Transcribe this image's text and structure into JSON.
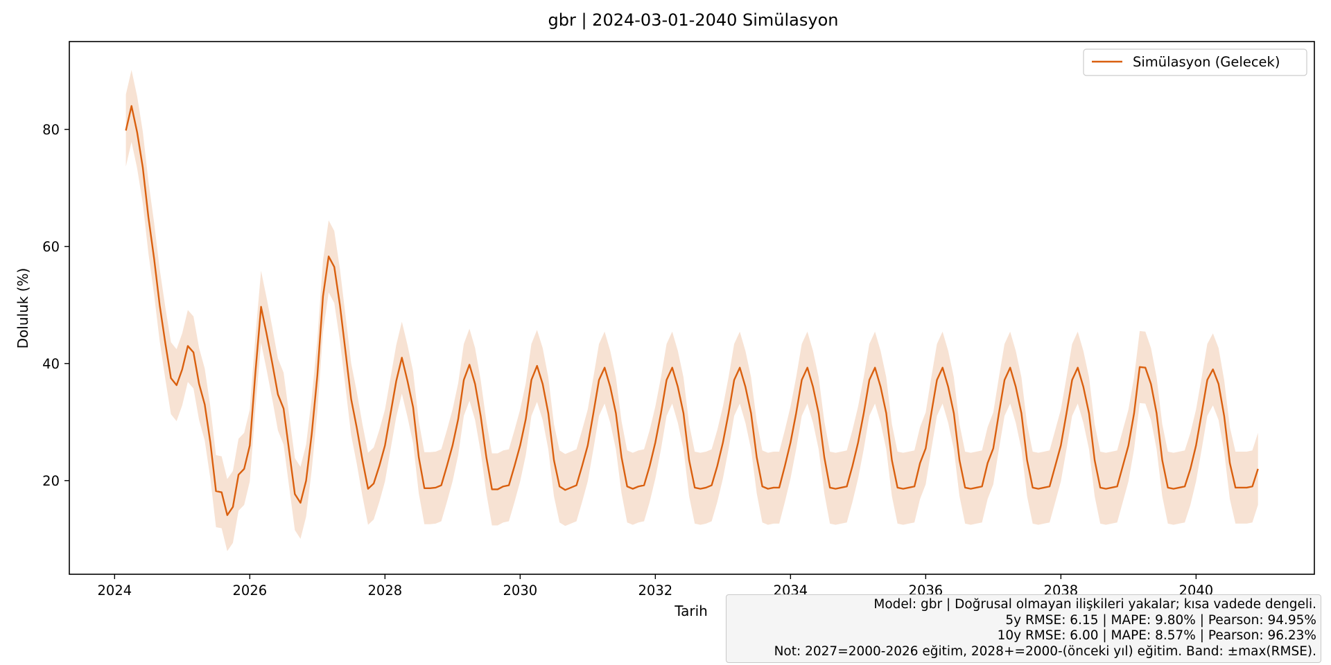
{
  "colors": {
    "line": "#d95f0e",
    "band": "#f7e2d3",
    "axis": "#000000",
    "box_bg": "#f5f5f5"
  },
  "chart_data": {
    "type": "line",
    "title": "gbr | 2024-03-01-2040 Simülasyon",
    "xlabel": "Tarih",
    "ylabel": "Doluluk (%)",
    "xlim": [
      2023.33,
      2041.75
    ],
    "ylim": [
      4,
      95
    ],
    "x_ticks": [
      2024,
      2026,
      2028,
      2030,
      2032,
      2034,
      2036,
      2038,
      2040
    ],
    "x_tick_labels": [
      "2024",
      "2026",
      "2028",
      "2030",
      "2032",
      "2034",
      "2036",
      "2038",
      "2040"
    ],
    "y_ticks": [
      20,
      40,
      60,
      80
    ],
    "y_tick_labels": [
      "20",
      "40",
      "60",
      "80"
    ],
    "grid": false,
    "legend": {
      "position": "top-right",
      "entries": [
        "Simülasyon (Gelecek)"
      ]
    },
    "band_halfwidth": 6.15,
    "series": [
      {
        "name": "Simülasyon (Gelecek)",
        "x_start": 2024.1667,
        "x_step": 0.08333,
        "values": [
          79.8,
          84.0,
          79.5,
          73.5,
          65.0,
          58.0,
          50.0,
          43.5,
          37.5,
          36.3,
          39.0,
          43.0,
          41.9,
          36.5,
          33.0,
          26.5,
          18.2,
          18.0,
          14.1,
          15.5,
          21.0,
          22.0,
          26.0,
          38.5,
          49.7,
          45.0,
          40.0,
          34.7,
          32.3,
          25.0,
          17.7,
          16.2,
          20.0,
          28.0,
          38.0,
          51.5,
          58.3,
          56.5,
          50.0,
          42.0,
          33.9,
          29.0,
          23.5,
          18.6,
          19.5,
          22.5,
          26.0,
          31.5,
          37.0,
          41.0,
          37.0,
          32.5,
          24.0,
          18.7,
          18.7,
          18.8,
          19.2,
          22.5,
          26.0,
          30.5,
          37.2,
          39.8,
          36.5,
          31.0,
          24.0,
          18.5,
          18.5,
          19.0,
          19.2,
          22.5,
          26.0,
          30.5,
          37.2,
          39.6,
          36.5,
          31.5,
          23.5,
          19.0,
          18.4,
          18.8,
          19.2,
          22.5,
          26.0,
          31.5,
          37.2,
          39.3,
          36.0,
          31.5,
          24.0,
          19.0,
          18.6,
          19.0,
          19.2,
          22.5,
          26.5,
          31.5,
          37.2,
          39.3,
          36.0,
          31.5,
          23.5,
          18.8,
          18.6,
          18.8,
          19.2,
          22.5,
          26.5,
          31.5,
          37.2,
          39.3,
          36.0,
          31.5,
          24.0,
          19.0,
          18.6,
          18.8,
          18.8,
          22.5,
          26.5,
          31.5,
          37.2,
          39.3,
          36.0,
          31.5,
          24.0,
          18.8,
          18.6,
          18.8,
          19.0,
          22.5,
          26.5,
          31.5,
          37.2,
          39.3,
          36.0,
          31.5,
          23.5,
          18.8,
          18.6,
          18.8,
          19.0,
          23.0,
          25.5,
          31.5,
          37.2,
          39.3,
          36.0,
          31.5,
          23.5,
          18.8,
          18.6,
          18.8,
          19.0,
          23.0,
          25.5,
          31.5,
          37.2,
          39.3,
          36.0,
          31.5,
          23.5,
          18.8,
          18.6,
          18.8,
          19.0,
          22.5,
          26.0,
          31.5,
          37.2,
          39.3,
          36.0,
          31.5,
          23.5,
          18.8,
          18.6,
          18.8,
          19.0,
          22.5,
          26.0,
          31.5,
          39.4,
          39.3,
          36.5,
          31.5,
          23.5,
          18.8,
          18.6,
          18.8,
          19.0,
          22.0,
          26.0,
          31.5,
          37.2,
          39.0,
          36.5,
          31.0,
          23.0,
          18.8,
          18.8,
          18.8,
          19.0,
          22.0
        ]
      }
    ]
  },
  "info_box": {
    "line1": "Model: gbr | Doğrusal olmayan ilişkileri yakalar; kısa vadede dengeli.",
    "line2": "5y RMSE: 6.15 | MAPE: 9.80% | Pearson: 94.95%",
    "line3": "10y RMSE: 6.00 | MAPE: 8.57% | Pearson: 96.23%",
    "line4": "Not: 2027=2000-2026 eğitim, 2028+=2000-(önceki yıl) eğitim. Band: ±max(RMSE)."
  }
}
